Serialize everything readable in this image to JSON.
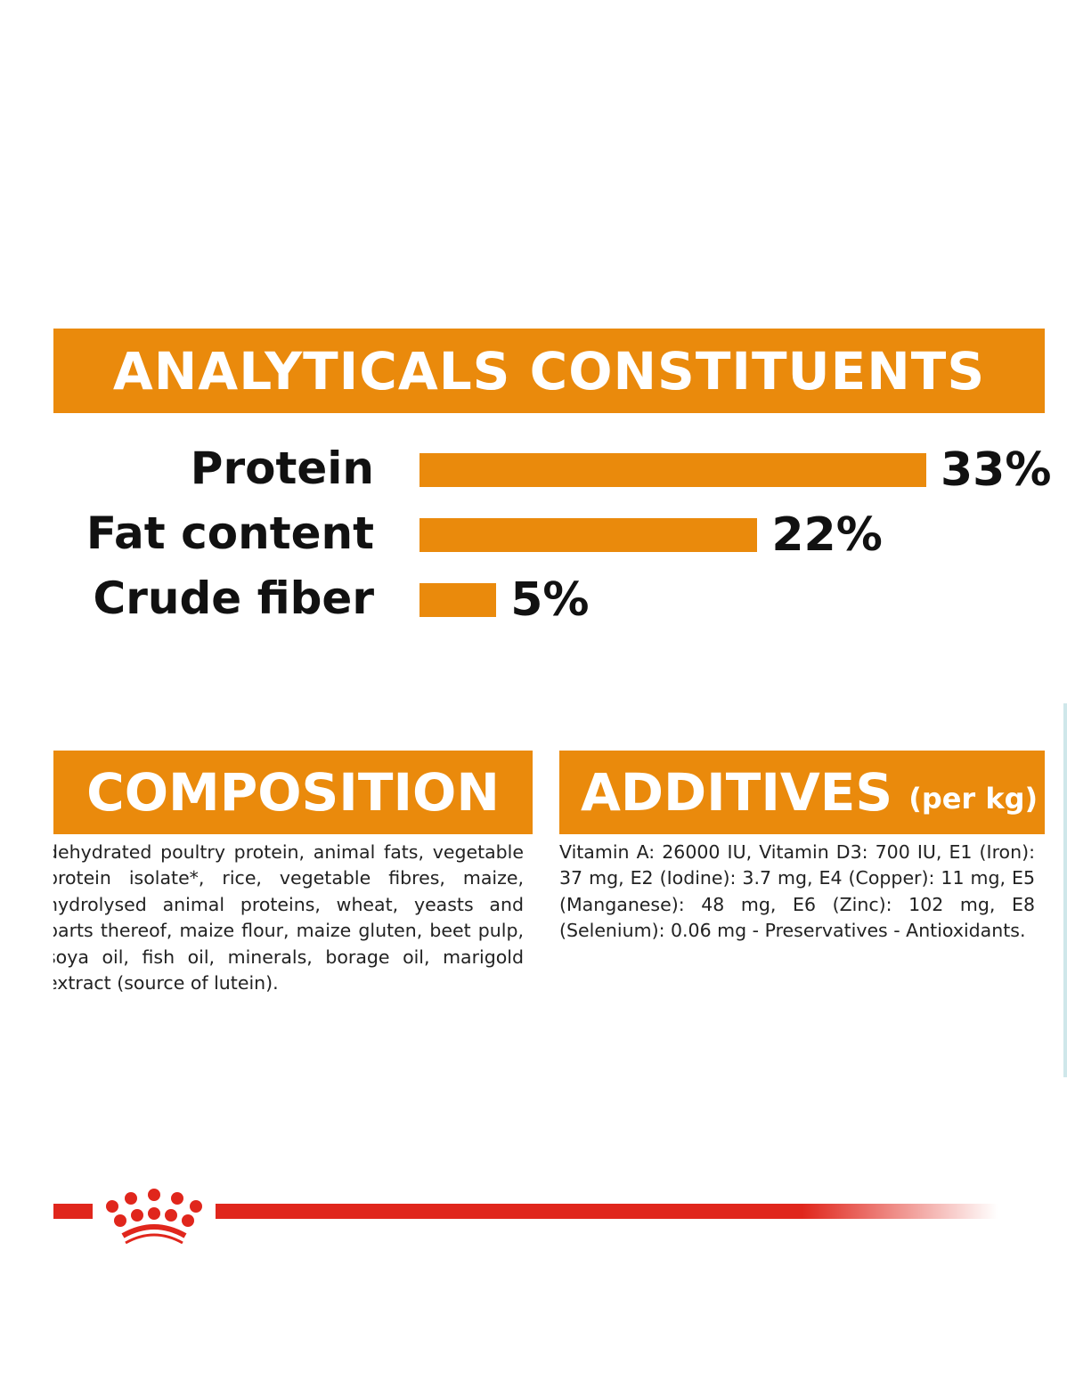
{
  "analytical": {
    "title": "ANALYTICALS CONSTITUENTS"
  },
  "chart_data": {
    "type": "bar",
    "orientation": "horizontal",
    "categories": [
      "Protein",
      "Fat content",
      "Crude fiber"
    ],
    "values": [
      33,
      22,
      5
    ],
    "labels": [
      "33%",
      "22%",
      "5%"
    ],
    "unit": "%",
    "bar_color": "#ea8a0c",
    "grid": false
  },
  "composition": {
    "title": "COMPOSITION",
    "text": "dehydrated poultry protein, animal fats, vegetable protein isolate*, rice, vegetable fibres, maize, hydrolysed animal proteins, wheat, yeasts and parts thereof, maize flour, maize gluten, beet pulp, soya oil, fish oil, minerals, borage oil, marigold extract (source of lutein)."
  },
  "additives": {
    "title": "ADDITIVES",
    "subtitle": "(per kg)",
    "text": "Vitamin A: 26000 IU, Vitamin D3: 700 IU, E1 (Iron): 37 mg, E2 (Iodine): 3.7 mg, E4 (Copper): 11 mg, E5 (Manganese): 48 mg, E6 (Zinc): 102 mg, E8 (Selenium): 0.06 mg - Preservatives - Antioxidants."
  },
  "colors": {
    "accent": "#ea8a0c",
    "brand_red": "#e0261c"
  },
  "logo": {
    "icon": "crown-icon"
  }
}
